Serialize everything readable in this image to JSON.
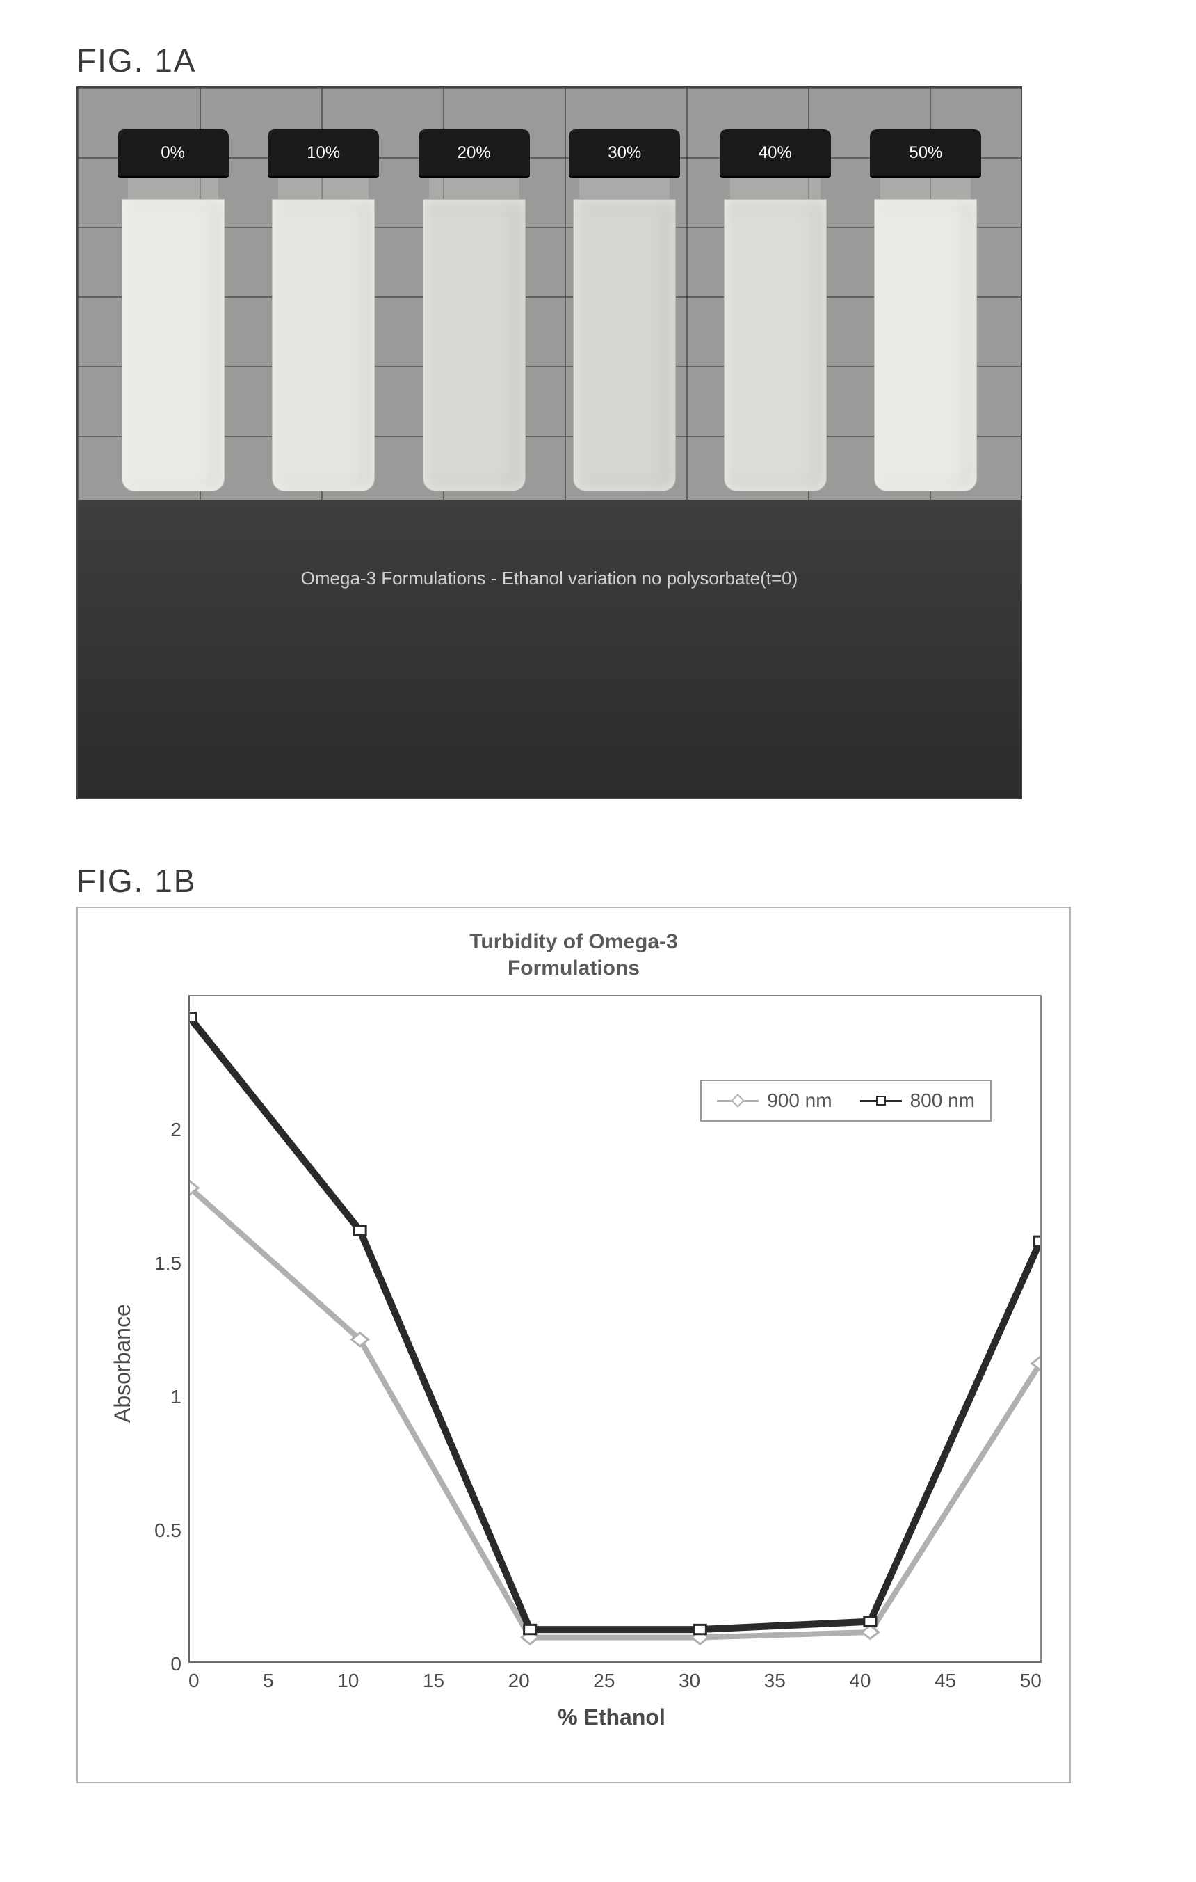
{
  "figA": {
    "label": "FIG. 1A",
    "caption": "Omega-3 Formulations  - Ethanol variation  no polysorbate(t=0)",
    "vials": [
      {
        "cap_label": "0%",
        "fill_color": "#eceae4"
      },
      {
        "cap_label": "10%",
        "fill_color": "#e6e5df"
      },
      {
        "cap_label": "20%",
        "fill_color": "#d7d8d2"
      },
      {
        "cap_label": "30%",
        "fill_color": "#d5d6d0"
      },
      {
        "cap_label": "40%",
        "fill_color": "#dcdcd6"
      },
      {
        "cap_label": "50%",
        "fill_color": "#eae9e3"
      }
    ]
  },
  "figB": {
    "label": "FIG. 1B",
    "chart": {
      "type": "line",
      "title_line1": "Turbidity of Omega-3",
      "title_line2": "Formulations",
      "title_fontsize": 30,
      "xlabel": "% Ethanol",
      "ylabel": "Absorbance",
      "label_fontsize": 32,
      "xlim": [
        0,
        50
      ],
      "ylim": [
        0,
        2.5
      ],
      "xtick_step": 5,
      "ytick_step": 0.5,
      "xtick_labels": [
        "0",
        "5",
        "10",
        "15",
        "20",
        "25",
        "30",
        "35",
        "40",
        "45",
        "50"
      ],
      "ytick_labels": [
        "2",
        "1.5",
        "1",
        "0.5",
        "0"
      ],
      "background_color": "#ffffff",
      "axis_color": "#6a6a6a",
      "legend_position": "upper-right-inside",
      "series": [
        {
          "name": "900 nm",
          "color": "#b0b0b0",
          "line_width": 4,
          "marker": "diamond",
          "marker_size": 14,
          "marker_fill": "#ffffff",
          "x": [
            0,
            10,
            20,
            30,
            40,
            50
          ],
          "y": [
            1.78,
            1.21,
            0.09,
            0.09,
            0.11,
            1.12
          ]
        },
        {
          "name": "800 nm",
          "color": "#2a2a2a",
          "line_width": 5,
          "marker": "square",
          "marker_size": 14,
          "marker_fill": "#ffffff",
          "x": [
            0,
            10,
            20,
            30,
            40,
            50
          ],
          "y": [
            2.42,
            1.62,
            0.12,
            0.12,
            0.15,
            1.58
          ]
        }
      ]
    }
  }
}
